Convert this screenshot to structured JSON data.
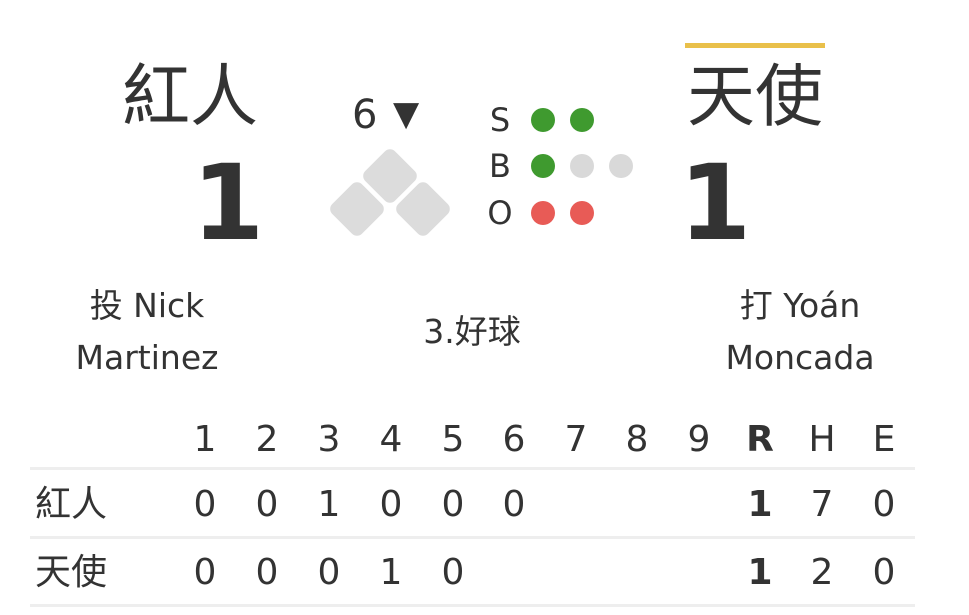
{
  "away": {
    "name": "紅人",
    "score": "1",
    "player": "投 Nick\nMartinez",
    "player_line1": "投 Nick",
    "player_line2": "Martinez"
  },
  "home": {
    "name": "天使",
    "score": "1",
    "player_line1": "打 Yoán",
    "player_line2": "Moncada",
    "batting": true
  },
  "inning": {
    "number": "6",
    "half_icon": "▼"
  },
  "count": {
    "s_label": "S",
    "b_label": "B",
    "o_label": "O",
    "strikes": 2,
    "balls": 1,
    "outs": 2
  },
  "bases": {
    "first": false,
    "second": false,
    "third": false
  },
  "play": "3.好球",
  "colors": {
    "strike": "#3f9a2f",
    "ball": "#3f9a2f",
    "out": "#e85b56",
    "empty": "#d9d9d9",
    "batting_bar": "#e9c04a"
  },
  "linescore": {
    "headers": [
      "1",
      "2",
      "3",
      "4",
      "5",
      "6",
      "7",
      "8",
      "9",
      "R",
      "H",
      "E"
    ],
    "rows": [
      {
        "team": "紅人",
        "cells": [
          "0",
          "0",
          "1",
          "0",
          "0",
          "0",
          "",
          "",
          "",
          "1",
          "7",
          "0"
        ]
      },
      {
        "team": "天使",
        "cells": [
          "0",
          "0",
          "0",
          "1",
          "0",
          "",
          "",
          "",
          "",
          "1",
          "2",
          "0"
        ]
      }
    ]
  }
}
